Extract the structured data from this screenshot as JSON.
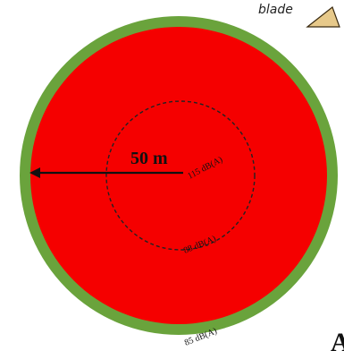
{
  "corner_label": "blade",
  "radius_label": "50 m",
  "levels": {
    "inner": "115 dB(A)",
    "middle": "88 dB(A)",
    "outer": "85 dB(A)"
  },
  "colors": {
    "outer_ring": "#6aa33c",
    "main_zone": "#f50000",
    "inner_circle_stroke": "#222222",
    "arrow": "#111111",
    "blade_shape": "#e7c98a"
  }
}
